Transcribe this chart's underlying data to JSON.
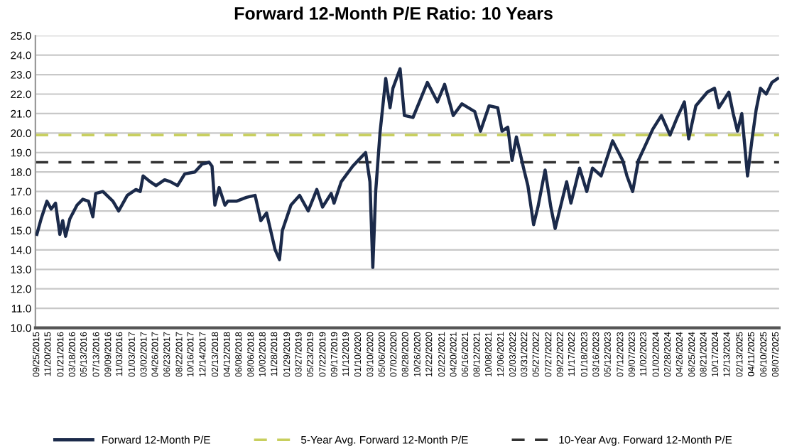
{
  "chart_data": {
    "type": "line",
    "title": "Forward 12-Month P/E Ratio: 10 Years",
    "x": [
      "2015-09-25",
      "2015-10-16",
      "2015-11-13",
      "2015-12-04",
      "2015-12-25",
      "2016-01-15",
      "2016-01-29",
      "2016-02-12",
      "2016-03-04",
      "2016-04-08",
      "2016-05-06",
      "2016-06-03",
      "2016-06-24",
      "2016-07-08",
      "2016-08-12",
      "2016-09-30",
      "2016-10-28",
      "2016-12-09",
      "2017-01-20",
      "2017-02-10",
      "2017-02-24",
      "2017-03-31",
      "2017-04-28",
      "2017-06-09",
      "2017-07-07",
      "2017-08-11",
      "2017-09-15",
      "2017-11-03",
      "2017-12-08",
      "2018-01-12",
      "2018-01-26",
      "2018-02-09",
      "2018-03-02",
      "2018-03-30",
      "2018-04-13",
      "2018-05-25",
      "2018-07-13",
      "2018-08-24",
      "2018-09-21",
      "2018-10-19",
      "2018-11-30",
      "2018-12-21",
      "2019-01-04",
      "2019-02-15",
      "2019-03-29",
      "2019-05-10",
      "2019-06-21",
      "2019-07-19",
      "2019-08-30",
      "2019-09-13",
      "2019-10-18",
      "2019-12-13",
      "2020-02-14",
      "2020-03-06",
      "2020-03-20",
      "2020-04-03",
      "2020-04-24",
      "2020-05-22",
      "2020-06-12",
      "2020-06-26",
      "2020-07-31",
      "2020-08-21",
      "2020-10-02",
      "2020-12-11",
      "2021-01-29",
      "2021-03-05",
      "2021-04-16",
      "2021-05-28",
      "2021-07-30",
      "2021-08-27",
      "2021-10-08",
      "2021-11-19",
      "2021-12-10",
      "2022-01-07",
      "2022-01-28",
      "2022-02-18",
      "2022-03-25",
      "2022-04-15",
      "2022-05-13",
      "2022-06-03",
      "2022-07-08",
      "2022-08-05",
      "2022-08-26",
      "2022-09-16",
      "2022-10-21",
      "2022-11-11",
      "2022-12-23",
      "2023-01-27",
      "2023-02-24",
      "2023-04-07",
      "2023-06-02",
      "2023-07-21",
      "2023-08-11",
      "2023-09-08",
      "2023-10-06",
      "2023-11-10",
      "2023-12-15",
      "2024-01-26",
      "2024-03-08",
      "2024-04-12",
      "2024-05-17",
      "2024-06-07",
      "2024-07-12",
      "2024-09-06",
      "2024-10-11",
      "2024-11-01",
      "2024-12-20",
      "2025-01-10",
      "2025-01-31",
      "2025-02-21",
      "2025-03-21",
      "2025-04-11",
      "2025-05-02",
      "2025-05-23",
      "2025-06-20",
      "2025-07-18",
      "2025-08-15"
    ],
    "series": [
      {
        "name": "Forward 12-Month P/E",
        "color": "#1b2a4a",
        "values": [
          14.8,
          15.6,
          16.5,
          16.1,
          16.4,
          14.8,
          15.5,
          14.7,
          15.6,
          16.3,
          16.6,
          16.5,
          15.7,
          16.9,
          17.0,
          16.5,
          16.0,
          16.8,
          17.1,
          17.0,
          17.8,
          17.5,
          17.3,
          17.6,
          17.5,
          17.3,
          17.9,
          18.0,
          18.4,
          18.5,
          18.3,
          16.3,
          17.2,
          16.3,
          16.5,
          16.5,
          16.7,
          16.8,
          15.5,
          15.9,
          14.0,
          13.5,
          15.0,
          16.3,
          16.8,
          16.0,
          17.1,
          16.2,
          16.9,
          16.4,
          17.5,
          18.3,
          19.0,
          17.5,
          13.1,
          17.0,
          20.0,
          22.8,
          21.3,
          22.3,
          23.3,
          20.9,
          20.8,
          22.6,
          21.6,
          22.5,
          20.9,
          21.5,
          21.1,
          20.1,
          21.4,
          21.3,
          20.1,
          20.3,
          18.6,
          19.8,
          18.2,
          17.3,
          15.3,
          16.2,
          18.1,
          16.2,
          15.1,
          16.0,
          17.5,
          16.4,
          18.2,
          17.0,
          18.2,
          17.8,
          19.6,
          18.6,
          17.8,
          17.0,
          18.6,
          19.4,
          20.2,
          20.9,
          19.9,
          20.8,
          21.6,
          19.7,
          21.4,
          22.1,
          22.3,
          21.3,
          22.1,
          21.0,
          20.1,
          21.0,
          17.8,
          19.6,
          21.2,
          22.3,
          22.0,
          22.6,
          22.8
        ]
      }
    ],
    "ref_lines": [
      {
        "axis": "y",
        "value": 19.9,
        "label": "5-Year Avg. Forward 12-Month P/E",
        "color": "#c8cf5e",
        "line_style": "dashed"
      },
      {
        "axis": "y",
        "value": 18.5,
        "label": "10-Year Avg. Forward 12-Month P/E",
        "color": "#333333",
        "line_style": "dashed"
      }
    ],
    "xlim": [
      "2015-09-18",
      "2025-08-22"
    ],
    "xticks": [
      {
        "value": "2015-09-25",
        "label": "09/25/2015"
      },
      {
        "value": "2015-11-20",
        "label": "11/20/2015"
      },
      {
        "value": "2016-01-21",
        "label": "01/21/2016"
      },
      {
        "value": "2016-03-18",
        "label": "03/18/2016"
      },
      {
        "value": "2016-05-13",
        "label": "05/13/2016"
      },
      {
        "value": "2016-07-13",
        "label": "07/13/2016"
      },
      {
        "value": "2016-09-09",
        "label": "09/09/2016"
      },
      {
        "value": "2016-11-03",
        "label": "11/03/2016"
      },
      {
        "value": "2017-01-03",
        "label": "01/03/2017"
      },
      {
        "value": "2017-03-02",
        "label": "03/02/2017"
      },
      {
        "value": "2017-04-26",
        "label": "04/26/2017"
      },
      {
        "value": "2017-06-23",
        "label": "06/23/2017"
      },
      {
        "value": "2017-08-22",
        "label": "08/22/2017"
      },
      {
        "value": "2017-10-16",
        "label": "10/16/2017"
      },
      {
        "value": "2017-12-14",
        "label": "12/14/2017"
      },
      {
        "value": "2018-02-13",
        "label": "02/13/2018"
      },
      {
        "value": "2018-04-12",
        "label": "04/12/2018"
      },
      {
        "value": "2018-06-08",
        "label": "06/08/2018"
      },
      {
        "value": "2018-08-06",
        "label": "08/06/2018"
      },
      {
        "value": "2018-10-02",
        "label": "10/02/2018"
      },
      {
        "value": "2018-11-28",
        "label": "11/28/2018"
      },
      {
        "value": "2019-01-29",
        "label": "01/29/2019"
      },
      {
        "value": "2019-03-27",
        "label": "03/27/2019"
      },
      {
        "value": "2019-05-23",
        "label": "05/23/2019"
      },
      {
        "value": "2019-07-22",
        "label": "07/22/2019"
      },
      {
        "value": "2019-09-17",
        "label": "09/17/2019"
      },
      {
        "value": "2019-11-12",
        "label": "11/12/2019"
      },
      {
        "value": "2020-01-10",
        "label": "01/10/2020"
      },
      {
        "value": "2020-03-10",
        "label": "03/10/2020"
      },
      {
        "value": "2020-05-06",
        "label": "05/06/2020"
      },
      {
        "value": "2020-07-02",
        "label": "07/02/2020"
      },
      {
        "value": "2020-08-28",
        "label": "08/28/2020"
      },
      {
        "value": "2020-10-26",
        "label": "10/26/2020"
      },
      {
        "value": "2020-12-22",
        "label": "12/22/2020"
      },
      {
        "value": "2021-02-22",
        "label": "02/22/2021"
      },
      {
        "value": "2021-04-20",
        "label": "04/20/2021"
      },
      {
        "value": "2021-06-16",
        "label": "06/16/2021"
      },
      {
        "value": "2021-08-12",
        "label": "08/12/2021"
      },
      {
        "value": "2021-10-08",
        "label": "10/08/2021"
      },
      {
        "value": "2021-12-06",
        "label": "12/06/2021"
      },
      {
        "value": "2022-02-03",
        "label": "02/03/2022"
      },
      {
        "value": "2022-03-31",
        "label": "03/31/2022"
      },
      {
        "value": "2022-05-27",
        "label": "05/27/2022"
      },
      {
        "value": "2022-07-27",
        "label": "07/27/2022"
      },
      {
        "value": "2022-09-22",
        "label": "09/22/2022"
      },
      {
        "value": "2022-11-17",
        "label": "11/17/2022"
      },
      {
        "value": "2023-01-18",
        "label": "01/18/2023"
      },
      {
        "value": "2023-03-16",
        "label": "03/16/2023"
      },
      {
        "value": "2023-05-12",
        "label": "05/12/2023"
      },
      {
        "value": "2023-07-12",
        "label": "07/12/2023"
      },
      {
        "value": "2023-09-07",
        "label": "09/07/2023"
      },
      {
        "value": "2023-11-02",
        "label": "11/02/2023"
      },
      {
        "value": "2024-01-02",
        "label": "01/02/2024"
      },
      {
        "value": "2024-02-28",
        "label": "02/28/2024"
      },
      {
        "value": "2024-04-26",
        "label": "04/26/2024"
      },
      {
        "value": "2024-06-25",
        "label": "06/25/2024"
      },
      {
        "value": "2024-08-21",
        "label": "08/21/2024"
      },
      {
        "value": "2024-10-17",
        "label": "10/17/2024"
      },
      {
        "value": "2024-12-13",
        "label": "12/13/2024"
      },
      {
        "value": "2025-02-13",
        "label": "02/13/2025"
      },
      {
        "value": "2025-04-11",
        "label": "04/11/2025"
      },
      {
        "value": "2025-06-10",
        "label": "06/10/2025"
      },
      {
        "value": "2025-08-07",
        "label": "08/07/2025"
      }
    ],
    "ylim": [
      10,
      25
    ],
    "yticks": [
      {
        "value": 10,
        "label": "10.0"
      },
      {
        "value": 11,
        "label": "11.0"
      },
      {
        "value": 12,
        "label": "12.0"
      },
      {
        "value": 13,
        "label": "13.0"
      },
      {
        "value": 14,
        "label": "14.0"
      },
      {
        "value": 15,
        "label": "15.0"
      },
      {
        "value": 16,
        "label": "16.0"
      },
      {
        "value": 17,
        "label": "17.0"
      },
      {
        "value": 18,
        "label": "18.0"
      },
      {
        "value": 19,
        "label": "19.0"
      },
      {
        "value": 20,
        "label": "20.0"
      },
      {
        "value": 21,
        "label": "21.0"
      },
      {
        "value": 22,
        "label": "22.0"
      },
      {
        "value": 23,
        "label": "23.0"
      },
      {
        "value": 24,
        "label": "24.0"
      },
      {
        "value": 25,
        "label": "25.0"
      }
    ],
    "grid": "y",
    "legend": "bottom",
    "marker": "none",
    "line_style": "solid"
  }
}
